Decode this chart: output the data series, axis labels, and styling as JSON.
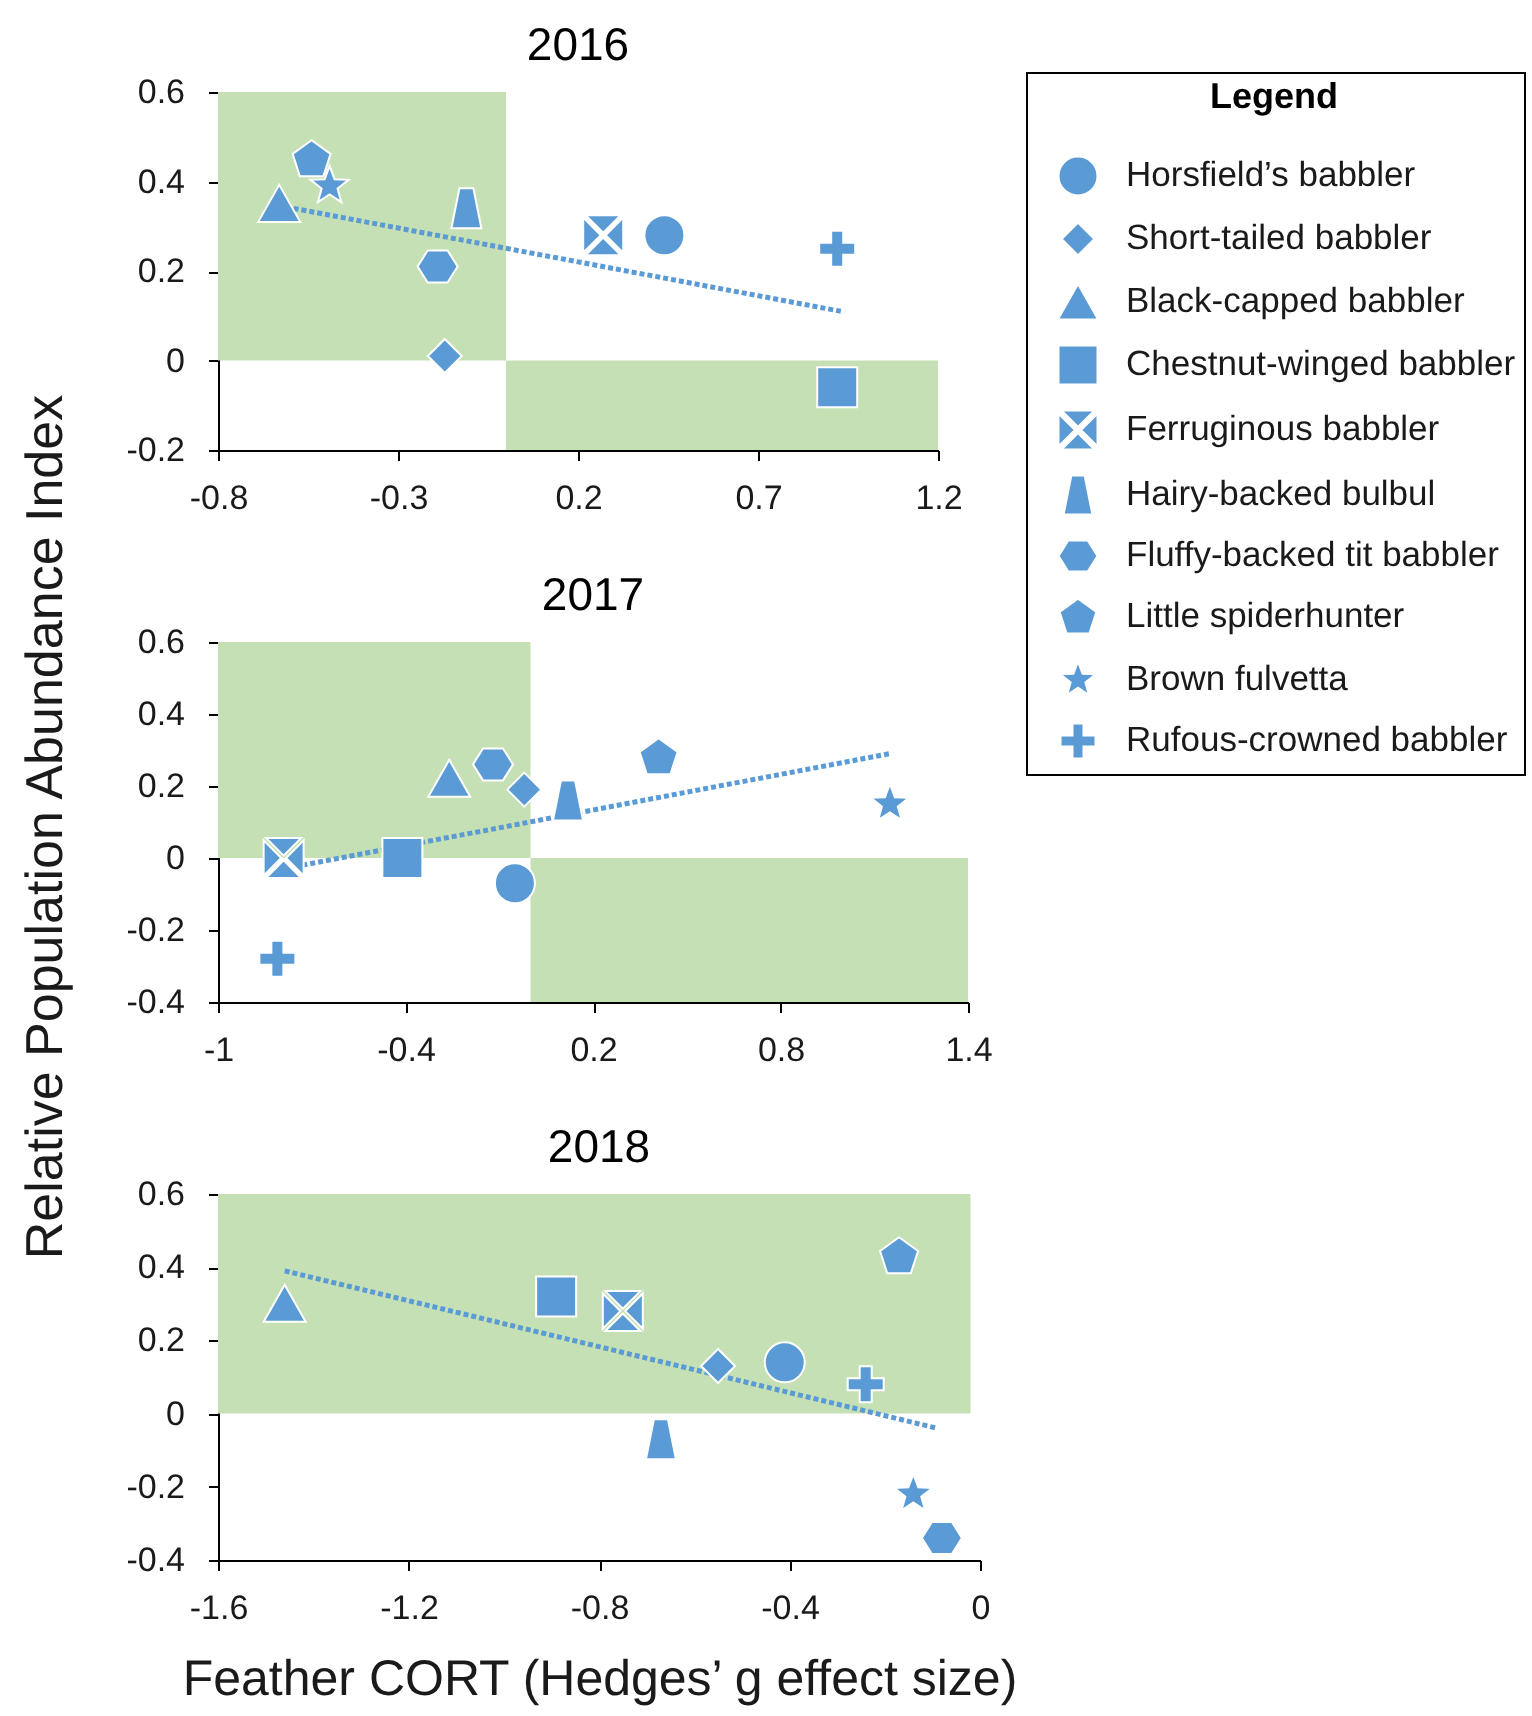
{
  "chart_data": [
    {
      "type": "scatter",
      "title": "2016",
      "ylabel": "Relative Population Abundance Index",
      "xlim": [
        -0.8,
        1.2
      ],
      "ylim": [
        -0.2,
        0.6
      ],
      "xticks": [
        -0.8,
        -0.3,
        0.2,
        0.7,
        1.2
      ],
      "yticks": [
        -0.2,
        0,
        0.2,
        0.4,
        0.6
      ],
      "legend": "right",
      "legend_title": "Legend",
      "series": [
        {
          "type": "area",
          "color": "#c5e0b4",
          "x": [
            -0.8,
            0
          ],
          "values": [
            0.6,
            0.6
          ]
        },
        {
          "type": "area",
          "color": "#c5e0b4",
          "x": [
            0,
            1.2
          ],
          "values": [
            -0.2,
            -0.2
          ]
        },
        {
          "type": "line",
          "color": "#5b9bd5",
          "line_style": "dotted",
          "marker": "none",
          "x": [
            -0.59,
            0.93
          ],
          "values": [
            0.34,
            0.11
          ]
        },
        {
          "name": "Horsfield’s babbler",
          "color": "#5b9bd5",
          "marker": "circle",
          "x": [
            0.44
          ],
          "values": [
            0.28
          ]
        },
        {
          "name": "Short-tailed babbler",
          "color": "#5b9bd5",
          "marker": "diamond",
          "x": [
            -0.17
          ],
          "values": [
            0.01
          ]
        },
        {
          "name": "Black-capped babbler",
          "color": "#5b9bd5",
          "marker": "triangle",
          "x": [
            -0.63
          ],
          "values": [
            0.35
          ]
        },
        {
          "name": "Chestnut-winged babbler",
          "color": "#5b9bd5",
          "marker": "square",
          "x": [
            0.92
          ],
          "values": [
            -0.06
          ]
        },
        {
          "name": "Ferruginous babbler",
          "color": "#5b9bd5",
          "x": [
            0.27
          ],
          "values": [
            0.28
          ]
        },
        {
          "name": "Hairy-backed bulbul",
          "color": "#5b9bd5",
          "x": [
            -0.11
          ],
          "values": [
            0.34
          ]
        },
        {
          "name": "Fluffy-backed tit babbler",
          "color": "#5b9bd5",
          "x": [
            -0.19
          ],
          "values": [
            0.21
          ]
        },
        {
          "name": "Little spiderhunter",
          "color": "#5b9bd5",
          "x": [
            -0.54
          ],
          "values": [
            0.45
          ]
        },
        {
          "name": "Brown fulvetta",
          "color": "#5b9bd5",
          "marker": "star",
          "x": [
            -0.49
          ],
          "values": [
            0.39
          ]
        },
        {
          "name": "Rufous-crowned babbler",
          "color": "#5b9bd5",
          "marker": "cross",
          "x": [
            0.92
          ],
          "values": [
            0.25
          ]
        }
      ]
    },
    {
      "type": "scatter",
      "title": "2017",
      "xlim": [
        -1,
        1.4
      ],
      "ylim": [
        -0.4,
        0.6
      ],
      "xticks": [
        -1,
        -0.4,
        0.2,
        0.8,
        1.4
      ],
      "yticks": [
        -0.4,
        -0.2,
        0,
        0.2,
        0.4,
        0.6
      ],
      "series": [
        {
          "type": "area",
          "color": "#c5e0b4",
          "x": [
            -1,
            0
          ],
          "values": [
            0.6,
            0.6
          ]
        },
        {
          "type": "area",
          "color": "#c5e0b4",
          "x": [
            0,
            1.4
          ],
          "values": [
            -0.4,
            -0.4
          ]
        },
        {
          "type": "line",
          "color": "#5b9bd5",
          "line_style": "dotted",
          "marker": "none",
          "x": [
            -0.73,
            1.15
          ],
          "values": [
            -0.02,
            0.29
          ]
        },
        {
          "name": "Horsfield’s babbler",
          "color": "#5b9bd5",
          "marker": "circle",
          "x": [
            -0.05
          ],
          "values": [
            -0.07
          ]
        },
        {
          "name": "Short-tailed babbler",
          "color": "#5b9bd5",
          "marker": "diamond",
          "x": [
            -0.02
          ],
          "values": [
            0.19
          ]
        },
        {
          "name": "Black-capped babbler",
          "color": "#5b9bd5",
          "marker": "triangle",
          "x": [
            -0.26
          ],
          "values": [
            0.22
          ]
        },
        {
          "name": "Chestnut-winged babbler",
          "color": "#5b9bd5",
          "marker": "square",
          "x": [
            -0.41
          ],
          "values": [
            0
          ]
        },
        {
          "name": "Ferruginous babbler",
          "color": "#5b9bd5",
          "x": [
            -0.79
          ],
          "values": [
            0
          ]
        },
        {
          "name": "Hairy-backed bulbul",
          "color": "#5b9bd5",
          "x": [
            0.12
          ],
          "values": [
            0.16
          ]
        },
        {
          "name": "Fluffy-backed tit babbler",
          "color": "#5b9bd5",
          "x": [
            -0.12
          ],
          "values": [
            0.26
          ]
        },
        {
          "name": "Little spiderhunter",
          "color": "#5b9bd5",
          "x": [
            0.41
          ],
          "values": [
            0.28
          ]
        },
        {
          "name": "Brown fulvetta",
          "color": "#5b9bd5",
          "marker": "star",
          "x": [
            1.15
          ],
          "values": [
            0.15
          ]
        },
        {
          "name": "Rufous-crowned babbler",
          "color": "#5b9bd5",
          "marker": "cross",
          "x": [
            -0.81
          ],
          "values": [
            -0.28
          ]
        }
      ]
    },
    {
      "type": "scatter",
      "title": "2018",
      "xlabel": "Feather CORT (Hedges’ g effect size)",
      "xlim": [
        -1.6,
        0
      ],
      "ylim": [
        -0.4,
        0.6
      ],
      "xticks": [
        -1.6,
        -1.2,
        -0.8,
        -0.4,
        0
      ],
      "yticks": [
        -0.4,
        -0.2,
        0,
        0.2,
        0.4,
        0.6
      ],
      "series": [
        {
          "type": "area",
          "color": "#c5e0b4",
          "x": [
            -1.6,
            -0.02
          ],
          "values": [
            0.6,
            0.6
          ]
        },
        {
          "type": "line",
          "color": "#5b9bd5",
          "line_style": "dotted",
          "marker": "none",
          "x": [
            -1.46,
            -0.09
          ],
          "values": [
            0.39,
            -0.04
          ]
        },
        {
          "name": "Horsfield’s babbler",
          "color": "#5b9bd5",
          "marker": "circle",
          "x": [
            -0.41
          ],
          "values": [
            0.14
          ]
        },
        {
          "name": "Short-tailed babbler",
          "color": "#5b9bd5",
          "marker": "diamond",
          "x": [
            -0.55
          ],
          "values": [
            0.13
          ]
        },
        {
          "name": "Black-capped babbler",
          "color": "#5b9bd5",
          "marker": "triangle",
          "x": [
            -1.46
          ],
          "values": [
            0.3
          ]
        },
        {
          "name": "Chestnut-winged babbler",
          "color": "#5b9bd5",
          "marker": "square",
          "x": [
            -0.89
          ],
          "values": [
            0.32
          ]
        },
        {
          "name": "Ferruginous babbler",
          "color": "#5b9bd5",
          "x": [
            -0.75
          ],
          "values": [
            0.28
          ]
        },
        {
          "name": "Hairy-backed bulbul",
          "color": "#5b9bd5",
          "x": [
            -0.67
          ],
          "values": [
            -0.07
          ]
        },
        {
          "name": "Fluffy-backed tit babbler",
          "color": "#5b9bd5",
          "x": [
            -0.08
          ],
          "values": [
            -0.34
          ]
        },
        {
          "name": "Little spiderhunter",
          "color": "#5b9bd5",
          "x": [
            -0.17
          ],
          "values": [
            0.43
          ]
        },
        {
          "name": "Brown fulvetta",
          "color": "#5b9bd5",
          "marker": "star",
          "x": [
            -0.14
          ],
          "values": [
            -0.22
          ]
        },
        {
          "name": "Rufous-crowned babbler",
          "color": "#5b9bd5",
          "marker": "cross",
          "x": [
            -0.24
          ],
          "values": [
            0.08
          ]
        }
      ]
    }
  ]
}
